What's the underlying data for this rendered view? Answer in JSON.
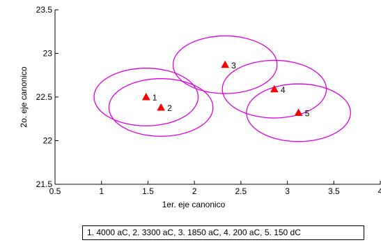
{
  "chart_data": {
    "type": "scatter",
    "xlabel": "1er. eje canonico",
    "ylabel": "2o. eje canonico",
    "xlim": [
      0.5,
      4
    ],
    "ylim": [
      21.5,
      23.5
    ],
    "xticks": [
      "0.5",
      "1",
      "1.5",
      "2",
      "2.5",
      "3",
      "3.5",
      "4"
    ],
    "yticks": [
      "21.5",
      "22",
      "22.5",
      "23",
      "23.5"
    ],
    "grid": false,
    "marker": "triangle",
    "marker_color": "#ff0000",
    "circle_color": "#dd00dd",
    "circle_radius": 0.56,
    "points": [
      {
        "label": "1",
        "x": 1.48,
        "y": 22.5
      },
      {
        "label": "2",
        "x": 1.64,
        "y": 22.38
      },
      {
        "label": "3",
        "x": 2.33,
        "y": 22.87
      },
      {
        "label": "4",
        "x": 2.86,
        "y": 22.59
      },
      {
        "label": "5",
        "x": 3.12,
        "y": 22.32
      }
    ]
  },
  "legend_text": "1. 4000 aC,  2. 3300 aC,  3. 1850 aC,  4. 200 aC, 5. 150 dC"
}
